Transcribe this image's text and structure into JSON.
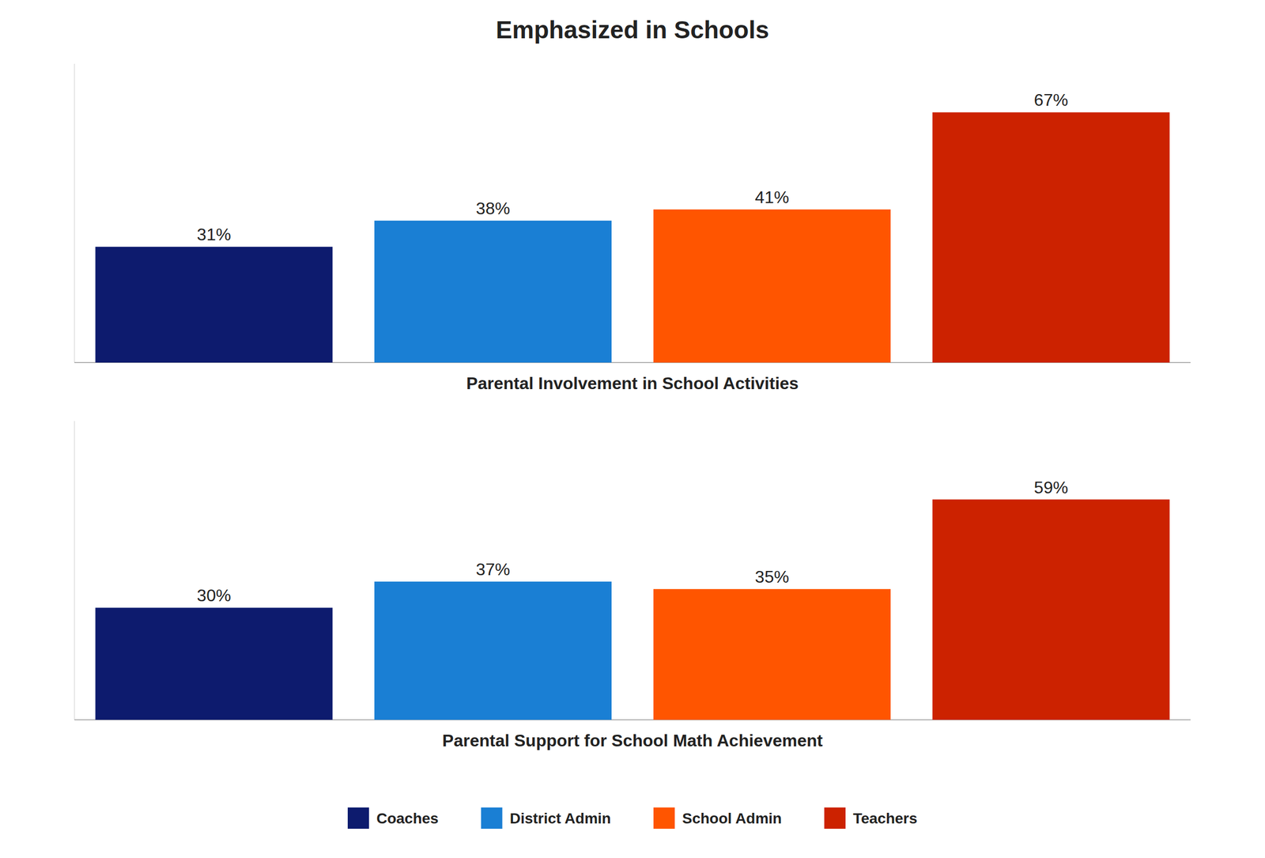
{
  "chart_data": {
    "type": "bar",
    "title": "Emphasized in Schools",
    "categories": [
      "Parental Involvement in School Activities",
      "Parental Support for School Math Achievement"
    ],
    "series": [
      {
        "name": "Coaches",
        "color": "#0d1b6e",
        "values": [
          31,
          30
        ],
        "value_labels": [
          "31%",
          "30%"
        ]
      },
      {
        "name": "District Admin",
        "color": "#1a7fd4",
        "values": [
          38,
          37
        ],
        "value_labels": [
          "38%",
          "37%"
        ]
      },
      {
        "name": "School Admin",
        "color": "#ff5500",
        "values": [
          41,
          35
        ],
        "value_labels": [
          "41%",
          "35%"
        ]
      },
      {
        "name": "Teachers",
        "color": "#cc2200",
        "values": [
          67,
          59
        ],
        "value_labels": [
          "67%",
          "59%"
        ]
      }
    ],
    "ylim": [
      0,
      80
    ],
    "data_labels": true,
    "tick_labels": false,
    "legend": "bottom"
  }
}
